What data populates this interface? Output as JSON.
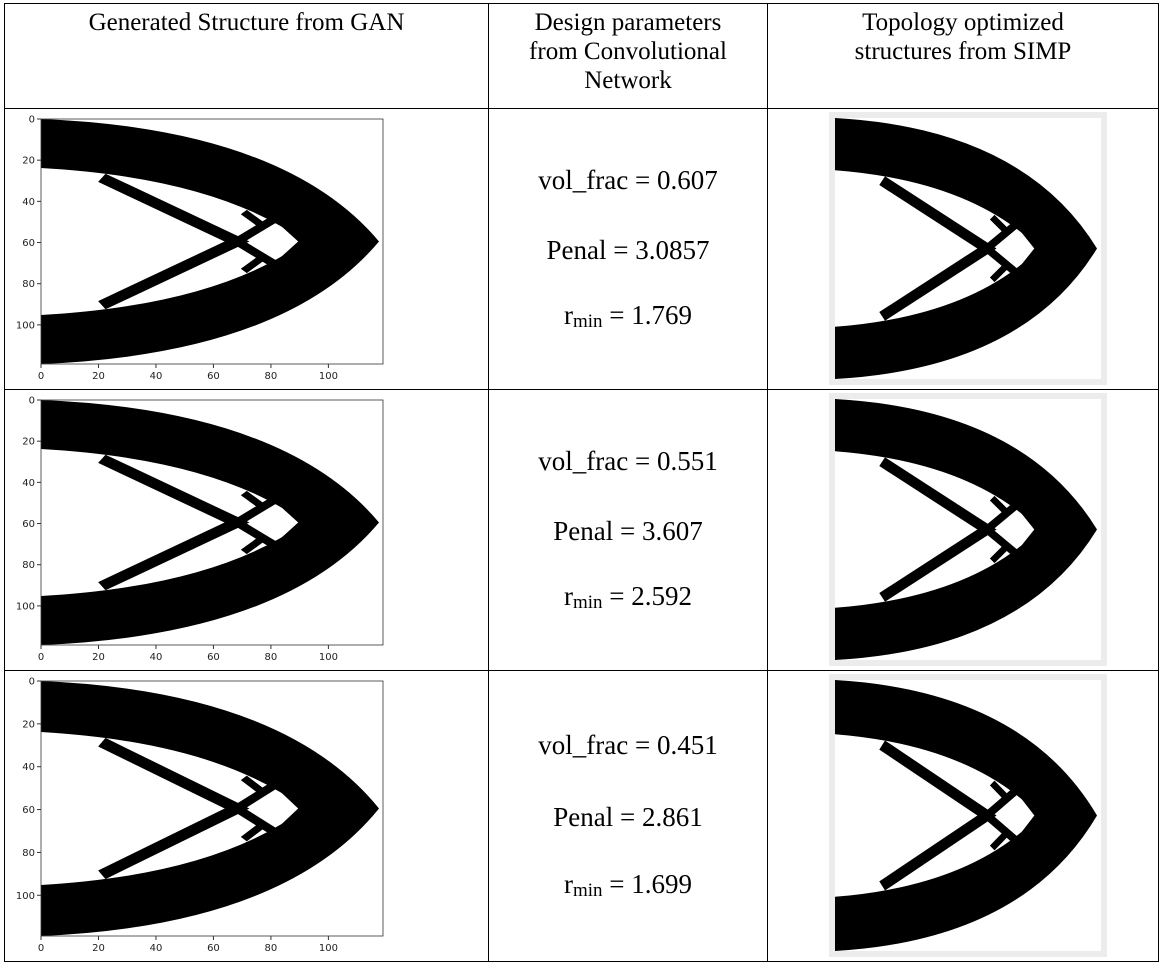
{
  "header": [
    [
      "Generated Structure from GAN"
    ],
    [
      "Design parameters",
      "from Convolutional",
      "Network"
    ],
    [
      "Topology optimized",
      "structures from SIMP"
    ]
  ],
  "gan_axis": {
    "xlim": [
      0,
      119
    ],
    "ylim": [
      0,
      119
    ],
    "xticks": [
      0,
      20,
      40,
      60,
      80,
      100
    ],
    "yticks": [
      0,
      20,
      40,
      60,
      80,
      100
    ]
  },
  "rows": [
    {
      "params": [
        {
          "text": "vol_frac = 0.607"
        },
        {
          "text": "Penal = 3.0857"
        },
        {
          "text": "r",
          "sub": "min",
          "rest": " = 1.769"
        }
      ]
    },
    {
      "params": [
        {
          "text": "vol_frac = 0.551"
        },
        {
          "text": "Penal = 3.607"
        },
        {
          "text": "r",
          "sub": "min",
          "rest": " = 2.592"
        }
      ]
    },
    {
      "params": [
        {
          "text": "vol_frac = 0.451"
        },
        {
          "text": "Penal = 2.861"
        },
        {
          "text": "r",
          "sub": "min",
          "rest": " = 1.699"
        }
      ]
    }
  ]
}
